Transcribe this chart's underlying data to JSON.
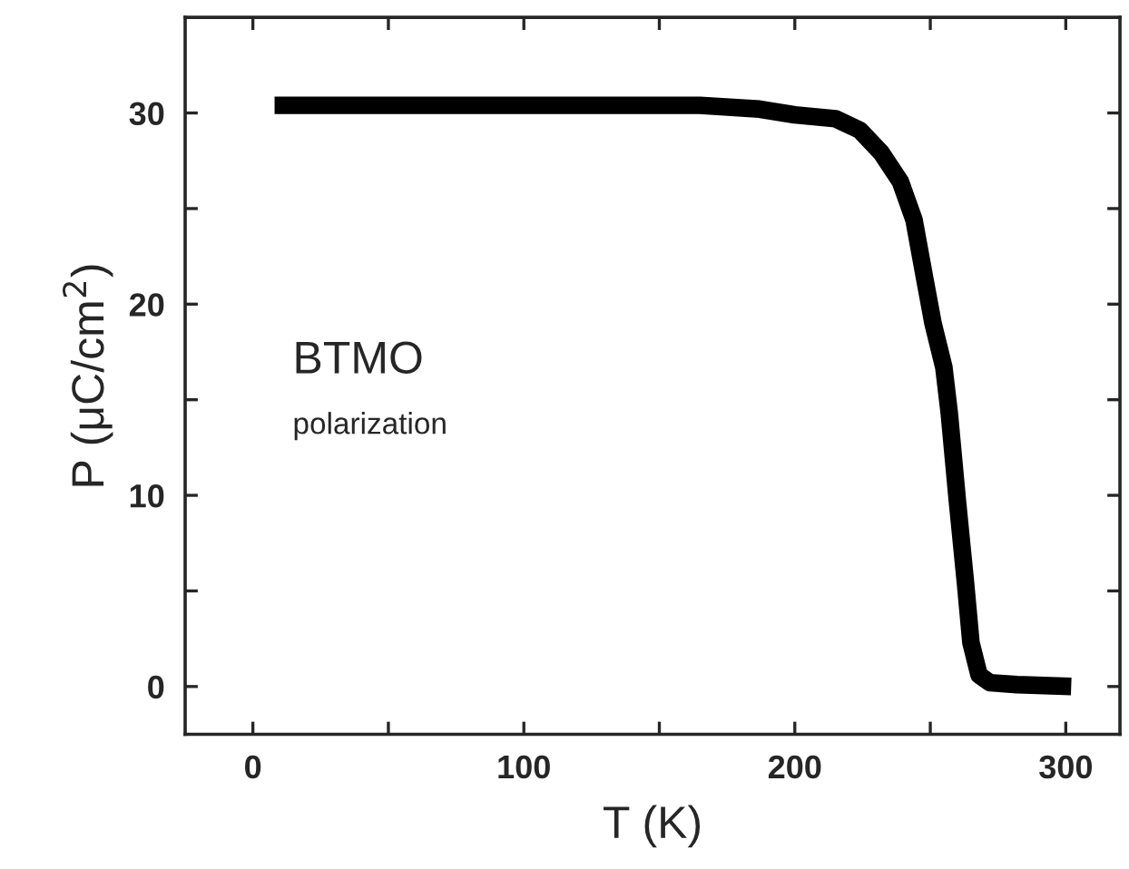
{
  "chart_data": {
    "type": "line",
    "xlabel": "T (K)",
    "ylabel": "P (μC/cm$^{2}$)",
    "x": [
      8,
      50,
      100,
      165,
      187,
      200,
      215,
      224,
      232,
      239,
      244,
      248,
      251,
      255,
      257,
      260,
      263,
      265,
      268,
      272,
      282,
      302
    ],
    "series": [
      {
        "color": "#000000",
        "values": [
          30.4,
          30.4,
          30.4,
          30.4,
          30.2,
          29.9,
          29.7,
          29.1,
          27.9,
          26.4,
          24.4,
          21.3,
          19.0,
          16.7,
          14.3,
          9.7,
          5.4,
          2.3,
          0.6,
          0.2,
          0.1,
          0.0
        ]
      }
    ],
    "xlim": [
      -25,
      320
    ],
    "ylim": [
      -2.5,
      35
    ],
    "xticks": [
      0,
      {
        "value": 50,
        "label": null
      },
      100,
      {
        "value": 150,
        "label": null
      },
      200,
      {
        "value": 250,
        "label": null
      },
      300
    ],
    "yticks": [
      0,
      {
        "value": 5,
        "label": null
      },
      10,
      {
        "value": 15,
        "label": null
      },
      20,
      {
        "value": 25,
        "label": null
      },
      30
    ],
    "annotations": [
      "BTMO",
      "polarization"
    ],
    "grid": false,
    "legend": false,
    "marker": "none",
    "line_style": "solid"
  }
}
